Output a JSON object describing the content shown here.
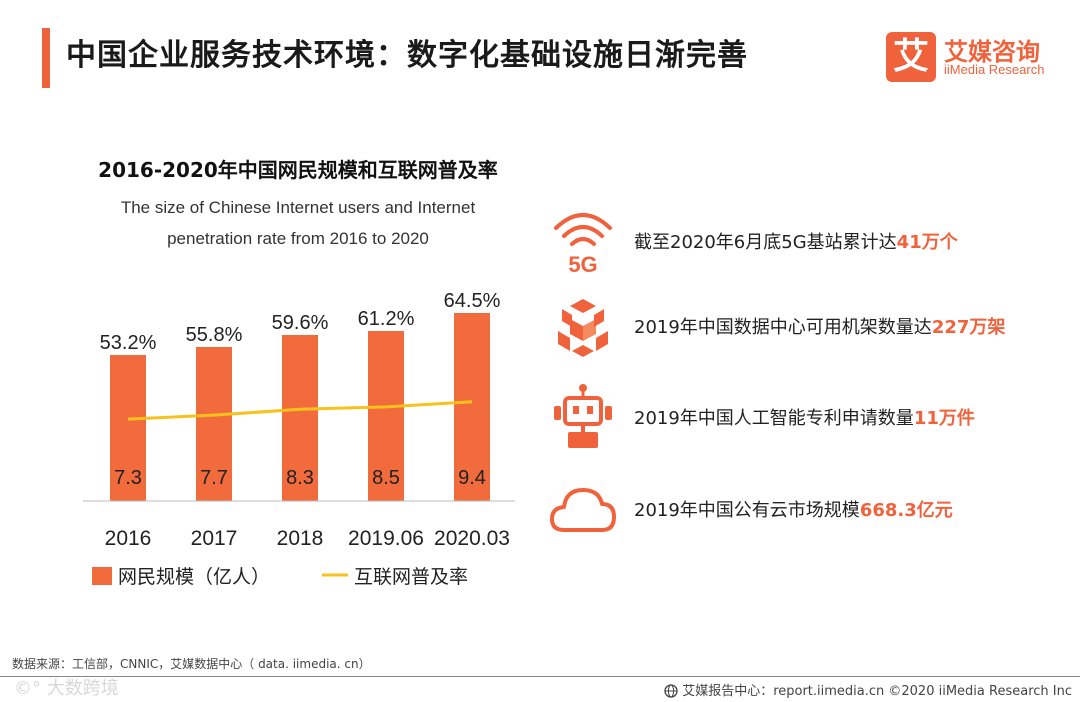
{
  "header": {
    "title": "中国企业服务技术环境：数字化基础设施日渐完善",
    "logo_cn": "艾媒咨询",
    "logo_en": "iiMedia Research",
    "logo_mark": "艾"
  },
  "chart_data": {
    "type": "bar",
    "title": "2016-2020年中国网民规模和互联网普及率",
    "subtitle_line1": "The size of Chinese Internet users and Internet",
    "subtitle_line2": "penetration rate from 2016 to 2020",
    "categories": [
      "2016",
      "2017",
      "2018",
      "2019.06",
      "2020.03"
    ],
    "series": [
      {
        "name": "网民规模（亿人）",
        "type": "bar",
        "color": "#f26b3c",
        "values": [
          7.3,
          7.7,
          8.3,
          8.5,
          9.4
        ]
      },
      {
        "name": "互联网普及率",
        "type": "line",
        "color": "#f8c21c",
        "values": [
          53.2,
          55.8,
          59.6,
          61.2,
          64.5
        ],
        "labels": [
          "53.2%",
          "55.8%",
          "59.6%",
          "61.2%",
          "64.5%"
        ]
      }
    ],
    "ylim": [
      0,
      10
    ],
    "line_ylim": [
      0,
      130
    ],
    "legend": "bottom",
    "grid": false
  },
  "features": [
    {
      "icon": "5g-signal-icon",
      "text": "截至2020年6月底5G基站累计达",
      "highlight": "41万个"
    },
    {
      "icon": "data-center-icon",
      "text": "2019年中国数据中心可用机架数量达",
      "highlight": "227万架"
    },
    {
      "icon": "robot-icon",
      "text": "2019年中国人工智能专利申请数量",
      "highlight": "11万件"
    },
    {
      "icon": "cloud-icon",
      "text": "2019年中国公有云市场规模",
      "highlight": "668.3亿元"
    }
  ],
  "icon_5g_label": "5G",
  "footer": {
    "source": "数据来源：工信部，CNNIC，艾媒数据中心（ data. iimedia. cn）",
    "right": "艾媒报告中心：report.iimedia.cn   ©2020  iiMedia Research  Inc",
    "watermark": "©° 大数跨境"
  },
  "colors": {
    "accent": "#f0623c",
    "bar": "#f26b3c",
    "line": "#f8c21c"
  }
}
